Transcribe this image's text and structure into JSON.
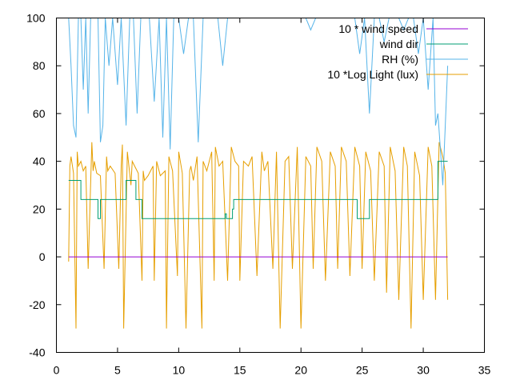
{
  "chart_data": {
    "type": "line",
    "title": "",
    "xlabel": "",
    "ylabel": "",
    "xlim": [
      0,
      35
    ],
    "ylim": [
      -40,
      100
    ],
    "xticks": [
      "0",
      "5",
      "10",
      "15",
      "20",
      "25",
      "30",
      "35"
    ],
    "yticks": [
      "-40",
      "-20",
      "0",
      "20",
      "40",
      "60",
      "80",
      "100"
    ],
    "grid": false,
    "legend_position": "top-right",
    "series": [
      {
        "name": "10 * wind speed",
        "color": "#9400d3",
        "x": [
          1.0,
          32.0
        ],
        "y": [
          0,
          0
        ]
      },
      {
        "name": "wind dir",
        "color": "#009e73",
        "x": [
          1.0,
          2.0,
          2.0,
          3.4,
          3.4,
          3.6,
          3.6,
          5.7,
          5.7,
          6.5,
          6.5,
          6.7,
          6.7,
          7.0,
          7.0,
          7.2,
          7.2,
          13.8,
          13.8,
          13.9,
          13.9,
          14.4,
          14.4,
          14.5,
          14.5,
          24.6,
          24.6,
          25.6,
          25.6,
          31.2,
          31.2,
          32.0
        ],
        "y": [
          32,
          32,
          24,
          24,
          16,
          16,
          24,
          24,
          32,
          32,
          24,
          24,
          24,
          24,
          16,
          16,
          16,
          16,
          18,
          18,
          16,
          16,
          20,
          20,
          24,
          24,
          16,
          16,
          24,
          24,
          40,
          40
        ]
      },
      {
        "name": "RH (%)",
        "color": "#56b4e9",
        "x": [
          1.0,
          1.2,
          1.4,
          1.6,
          1.8,
          2.0,
          2.2,
          2.4,
          2.6,
          2.8,
          3.0,
          3.2,
          3.4,
          3.6,
          3.8,
          4.0,
          4.3,
          4.6,
          5.0,
          5.3,
          5.7,
          6.0,
          6.3,
          6.6,
          6.9,
          7.2,
          7.6,
          8.0,
          8.4,
          8.7,
          9.0,
          9.3,
          9.6,
          10.0,
          10.4,
          10.8,
          11.2,
          11.6,
          12.0,
          12.4,
          12.8,
          13.2,
          13.6,
          14.0,
          14.4,
          14.8,
          15.2,
          15.6,
          16.0,
          16.4,
          16.8,
          17.2,
          17.6,
          18.0,
          18.4,
          18.8,
          19.2,
          19.6,
          20.0,
          20.4,
          20.8,
          21.2,
          21.6,
          22.0,
          22.4,
          22.8,
          23.2,
          23.6,
          24.0,
          24.4,
          24.8,
          25.2,
          25.6,
          26.0,
          26.4,
          26.8,
          27.2,
          27.6,
          28.0,
          28.4,
          28.8,
          29.2,
          29.6,
          30.0,
          30.4,
          30.8,
          31.0,
          31.2,
          31.4,
          31.6,
          31.8,
          32.0
        ],
        "y": [
          100,
          80,
          55,
          50,
          100,
          100,
          70,
          100,
          60,
          100,
          100,
          100,
          100,
          48,
          55,
          100,
          80,
          100,
          72,
          100,
          55,
          100,
          100,
          60,
          100,
          100,
          100,
          65,
          100,
          50,
          100,
          45,
          100,
          100,
          85,
          100,
          100,
          48,
          100,
          100,
          100,
          100,
          80,
          100,
          100,
          100,
          100,
          100,
          100,
          100,
          100,
          100,
          100,
          100,
          100,
          100,
          100,
          100,
          100,
          100,
          95,
          100,
          100,
          100,
          100,
          100,
          100,
          100,
          100,
          100,
          85,
          100,
          60,
          100,
          100,
          90,
          100,
          100,
          100,
          95,
          100,
          100,
          85,
          100,
          70,
          100,
          55,
          60,
          45,
          30,
          55,
          80
        ]
      },
      {
        "name": "10 *Log Light (lux)",
        "color": "#e69f00",
        "x": [
          1.0,
          1.1,
          1.2,
          1.4,
          1.6,
          1.7,
          1.8,
          2.0,
          2.2,
          2.4,
          2.6,
          2.9,
          3.0,
          3.1,
          3.3,
          3.6,
          3.9,
          4.1,
          4.2,
          4.4,
          4.8,
          5.1,
          5.3,
          5.4,
          5.5,
          5.8,
          6.1,
          6.2,
          6.4,
          6.7,
          7.0,
          7.1,
          7.2,
          7.5,
          7.9,
          8.0,
          8.2,
          8.5,
          8.9,
          9.0,
          9.2,
          9.5,
          9.9,
          10.0,
          10.3,
          10.6,
          10.9,
          11.0,
          11.2,
          11.5,
          11.9,
          12.0,
          12.3,
          12.7,
          12.9,
          13.0,
          13.3,
          13.6,
          14.0,
          14.3,
          14.6,
          14.9,
          15.0,
          15.3,
          15.7,
          16.0,
          16.4,
          16.8,
          17.0,
          17.3,
          17.7,
          18.0,
          18.3,
          18.7,
          19.0,
          19.3,
          19.7,
          20.0,
          20.4,
          20.8,
          21.0,
          21.3,
          21.7,
          22.0,
          22.4,
          22.8,
          23.0,
          23.3,
          23.7,
          24.0,
          24.4,
          24.8,
          25.0,
          25.3,
          25.7,
          26.0,
          26.4,
          26.8,
          27.0,
          27.3,
          27.7,
          28.0,
          28.4,
          28.7,
          29.0,
          29.3,
          29.7,
          30.0,
          30.4,
          30.7,
          31.0,
          31.3,
          31.6,
          31.8,
          32.0
        ],
        "y": [
          -2,
          38,
          42,
          35,
          -30,
          44,
          38,
          40,
          36,
          38,
          -5,
          48,
          36,
          40,
          35,
          34,
          -5,
          42,
          36,
          38,
          35,
          -5,
          38,
          47,
          -30,
          44,
          30,
          40,
          38,
          35,
          -10,
          36,
          32,
          34,
          38,
          -10,
          40,
          34,
          36,
          -30,
          42,
          36,
          -8,
          44,
          35,
          -30,
          36,
          38,
          32,
          42,
          -30,
          40,
          36,
          44,
          -10,
          46,
          38,
          40,
          -10,
          46,
          40,
          38,
          -10,
          40,
          38,
          42,
          -8,
          44,
          36,
          40,
          -5,
          44,
          -30,
          40,
          42,
          -5,
          46,
          -30,
          42,
          38,
          -5,
          46,
          40,
          -10,
          44,
          38,
          -5,
          46,
          40,
          -8,
          46,
          38,
          -5,
          44,
          36,
          -10,
          44,
          38,
          -15,
          46,
          36,
          -18,
          46,
          38,
          -30,
          44,
          34,
          -18,
          46,
          38,
          -18,
          48,
          42,
          35,
          -18
        ]
      }
    ]
  }
}
